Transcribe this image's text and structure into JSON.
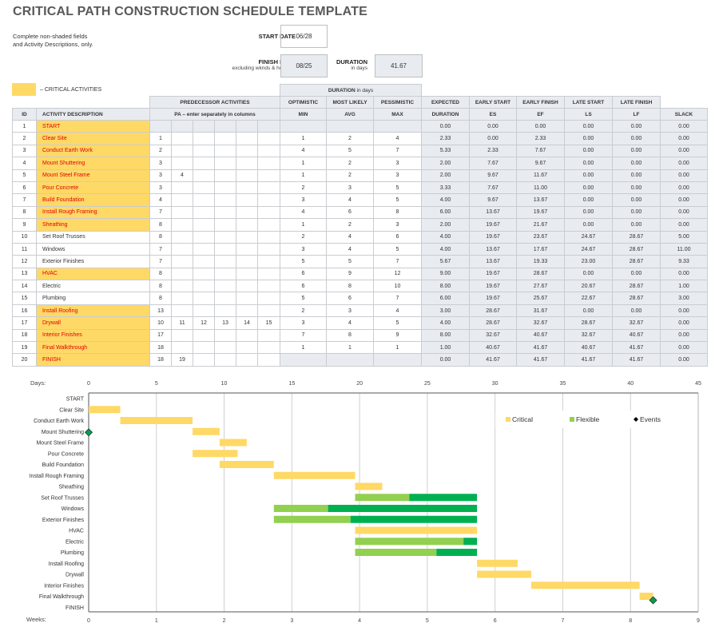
{
  "title": "CRITICAL PATH CONSTRUCTION SCHEDULE TEMPLATE",
  "note_line1": "Complete non-shaded fields",
  "note_line2": "and Activity Descriptions, only.",
  "start_date": {
    "label": "START DATE",
    "value": "06/28"
  },
  "finish_date": {
    "label": "FINISH DATE",
    "sublabel": "excluding wknds & holidays",
    "value": "08/25"
  },
  "duration": {
    "label": "DURATION",
    "sublabel": "in days",
    "value": "41.67"
  },
  "legend": {
    "critical_label": "– CRITICAL ACTIVITIES",
    "critical_color": "#FFD966"
  },
  "headers": {
    "duration_group": "DURATION",
    "duration_group_sub": "in days",
    "predecessor": "PREDECESSOR ACTIVITIES",
    "optimistic": "OPTIMISTIC",
    "most_likely": "MOST LIKELY",
    "pessimistic": "PESSIMISTIC",
    "expected": "EXPECTED",
    "early_start": "EARLY START",
    "early_finish": "EARLY FINISH",
    "late_start": "LATE START",
    "late_finish": "LATE FINISH",
    "id": "ID",
    "activity": "ACTIVITY DESCRIPTION",
    "pa": "PA  –  enter separately in columns",
    "min": "MIN",
    "avg": "AVG",
    "max": "MAX",
    "duration": "DURATION",
    "es": "ES",
    "ef": "EF",
    "ls": "LS",
    "lf": "LF",
    "slack": "SLACK"
  },
  "rows": [
    {
      "id": "1",
      "desc": "START",
      "critical": true,
      "pa": [
        "",
        "",
        "",
        "",
        "",
        ""
      ],
      "min": "",
      "avg": "",
      "max": "",
      "dur": "0.00",
      "es": "0.00",
      "ef": "0.00",
      "ls": "0.00",
      "lf": "0.00",
      "slack": "0.00"
    },
    {
      "id": "2",
      "desc": "Clear Site",
      "critical": true,
      "pa": [
        "1",
        "",
        "",
        "",
        "",
        ""
      ],
      "min": "1",
      "avg": "2",
      "max": "4",
      "dur": "2.33",
      "es": "0.00",
      "ef": "2.33",
      "ls": "0.00",
      "lf": "0.00",
      "slack": "0.00"
    },
    {
      "id": "3",
      "desc": "Conduct Earth Work",
      "critical": true,
      "pa": [
        "2",
        "",
        "",
        "",
        "",
        ""
      ],
      "min": "4",
      "avg": "5",
      "max": "7",
      "dur": "5.33",
      "es": "2.33",
      "ef": "7.67",
      "ls": "0.00",
      "lf": "0.00",
      "slack": "0.00"
    },
    {
      "id": "4",
      "desc": "Mount Shuttering",
      "critical": true,
      "pa": [
        "3",
        "",
        "",
        "",
        "",
        ""
      ],
      "min": "1",
      "avg": "2",
      "max": "3",
      "dur": "2.00",
      "es": "7.67",
      "ef": "9.67",
      "ls": "0.00",
      "lf": "0.00",
      "slack": "0.00"
    },
    {
      "id": "5",
      "desc": "Mount Steel Frame",
      "critical": true,
      "pa": [
        "3",
        "4",
        "",
        "",
        "",
        ""
      ],
      "min": "1",
      "avg": "2",
      "max": "3",
      "dur": "2.00",
      "es": "9.67",
      "ef": "11.67",
      "ls": "0.00",
      "lf": "0.00",
      "slack": "0.00"
    },
    {
      "id": "6",
      "desc": "Pour Concrete",
      "critical": true,
      "pa": [
        "3",
        "",
        "",
        "",
        "",
        ""
      ],
      "min": "2",
      "avg": "3",
      "max": "5",
      "dur": "3.33",
      "es": "7.67",
      "ef": "11.00",
      "ls": "0.00",
      "lf": "0.00",
      "slack": "0.00"
    },
    {
      "id": "7",
      "desc": "Build Foundation",
      "critical": true,
      "pa": [
        "4",
        "",
        "",
        "",
        "",
        ""
      ],
      "min": "3",
      "avg": "4",
      "max": "5",
      "dur": "4.00",
      "es": "9.67",
      "ef": "13.67",
      "ls": "0.00",
      "lf": "0.00",
      "slack": "0.00"
    },
    {
      "id": "8",
      "desc": "Install Rough Framing",
      "critical": true,
      "pa": [
        "7",
        "",
        "",
        "",
        "",
        ""
      ],
      "min": "4",
      "avg": "6",
      "max": "8",
      "dur": "6.00",
      "es": "13.67",
      "ef": "19.67",
      "ls": "0.00",
      "lf": "0.00",
      "slack": "0.00"
    },
    {
      "id": "9",
      "desc": "Sheathing",
      "critical": true,
      "pa": [
        "8",
        "",
        "",
        "",
        "",
        ""
      ],
      "min": "1",
      "avg": "2",
      "max": "3",
      "dur": "2.00",
      "es": "19.67",
      "ef": "21.67",
      "ls": "0.00",
      "lf": "0.00",
      "slack": "0.00"
    },
    {
      "id": "10",
      "desc": "Set Roof Trusses",
      "critical": false,
      "pa": [
        "8",
        "",
        "",
        "",
        "",
        ""
      ],
      "min": "2",
      "avg": "4",
      "max": "6",
      "dur": "4.00",
      "es": "19.67",
      "ef": "23.67",
      "ls": "24.67",
      "lf": "28.67",
      "slack": "5.00"
    },
    {
      "id": "11",
      "desc": "Windows",
      "critical": false,
      "pa": [
        "7",
        "",
        "",
        "",
        "",
        ""
      ],
      "min": "3",
      "avg": "4",
      "max": "5",
      "dur": "4.00",
      "es": "13.67",
      "ef": "17.67",
      "ls": "24.67",
      "lf": "28.67",
      "slack": "11.00"
    },
    {
      "id": "12",
      "desc": "Exterior Finishes",
      "critical": false,
      "pa": [
        "7",
        "",
        "",
        "",
        "",
        ""
      ],
      "min": "5",
      "avg": "5",
      "max": "7",
      "dur": "5.67",
      "es": "13.67",
      "ef": "19.33",
      "ls": "23.00",
      "lf": "28.67",
      "slack": "9.33"
    },
    {
      "id": "13",
      "desc": "HVAC",
      "critical": true,
      "pa": [
        "8",
        "",
        "",
        "",
        "",
        ""
      ],
      "min": "6",
      "avg": "9",
      "max": "12",
      "dur": "9.00",
      "es": "19.67",
      "ef": "28.67",
      "ls": "0.00",
      "lf": "0.00",
      "slack": "0.00"
    },
    {
      "id": "14",
      "desc": "Electric",
      "critical": false,
      "pa": [
        "8",
        "",
        "",
        "",
        "",
        ""
      ],
      "min": "6",
      "avg": "8",
      "max": "10",
      "dur": "8.00",
      "es": "19.67",
      "ef": "27.67",
      "ls": "20.67",
      "lf": "28.67",
      "slack": "1.00"
    },
    {
      "id": "15",
      "desc": "Plumbing",
      "critical": false,
      "pa": [
        "8",
        "",
        "",
        "",
        "",
        ""
      ],
      "min": "5",
      "avg": "6",
      "max": "7",
      "dur": "6.00",
      "es": "19.67",
      "ef": "25.67",
      "ls": "22.67",
      "lf": "28.67",
      "slack": "3.00"
    },
    {
      "id": "16",
      "desc": "Install Roofing",
      "critical": true,
      "pa": [
        "13",
        "",
        "",
        "",
        "",
        ""
      ],
      "min": "2",
      "avg": "3",
      "max": "4",
      "dur": "3.00",
      "es": "28.67",
      "ef": "31.67",
      "ls": "0.00",
      "lf": "0.00",
      "slack": "0.00"
    },
    {
      "id": "17",
      "desc": "Drywall",
      "critical": true,
      "pa": [
        "10",
        "11",
        "12",
        "13",
        "14",
        "15"
      ],
      "min": "3",
      "avg": "4",
      "max": "5",
      "dur": "4.00",
      "es": "28.67",
      "ef": "32.67",
      "ls": "28.67",
      "lf": "32.67",
      "slack": "0.00"
    },
    {
      "id": "18",
      "desc": "Interior Finishes",
      "critical": true,
      "pa": [
        "17",
        "",
        "",
        "",
        "",
        ""
      ],
      "min": "7",
      "avg": "8",
      "max": "9",
      "dur": "8.00",
      "es": "32.67",
      "ef": "40.67",
      "ls": "32.67",
      "lf": "40.67",
      "slack": "0.00"
    },
    {
      "id": "19",
      "desc": "Final Walkthrough",
      "critical": true,
      "pa": [
        "18",
        "",
        "",
        "",
        "",
        ""
      ],
      "min": "1",
      "avg": "1",
      "max": "1",
      "dur": "1.00",
      "es": "40.67",
      "ef": "41.67",
      "ls": "40.67",
      "lf": "41.67",
      "slack": "0.00"
    },
    {
      "id": "20",
      "desc": "FINISH",
      "critical": true,
      "pa": [
        "18",
        "19",
        "",
        "",
        "",
        ""
      ],
      "min": "",
      "avg": "",
      "max": "",
      "dur": "0.00",
      "es": "41.67",
      "ef": "41.67",
      "ls": "41.67",
      "lf": "41.67",
      "slack": "0.00"
    }
  ],
  "chart_data": {
    "type": "bar",
    "orientation": "horizontal-gantt",
    "days_label": "Days:",
    "weeks_label": "Weeks:",
    "days_ticks": [
      "0",
      "5",
      "10",
      "15",
      "20",
      "25",
      "30",
      "35",
      "40",
      "45"
    ],
    "weeks_ticks": [
      "0",
      "1",
      "2",
      "3",
      "4",
      "5",
      "6",
      "7",
      "8",
      "9"
    ],
    "xlim": [
      0,
      45
    ],
    "grid": true,
    "legend_position": "top-right",
    "legend": [
      {
        "name": "Critical",
        "color": "#FFD966"
      },
      {
        "name": "Flexible",
        "color": "#92D050"
      },
      {
        "name": "Events",
        "color": "#000000"
      }
    ],
    "slack_color": "#00B050",
    "event_color": "#00A050",
    "categories": [
      "START",
      "Clear Site",
      "Conduct Earth Work",
      "Mount Shuttering",
      "Mount Steel Frame",
      "Pour Concrete",
      "Build Foundation",
      "Install Rough Framing",
      "Sheathing",
      "Set Roof Trusses",
      "Windows",
      "Exterior Finishes",
      "HVAC",
      "Electric",
      "Plumbing",
      "Install Roofing",
      "Drywall",
      "Interior Finishes",
      "Final Walkthrough",
      "FINISH"
    ],
    "tasks": [
      {
        "start": 0,
        "end": 0,
        "slack_end": null,
        "critical": true
      },
      {
        "start": 0,
        "end": 2.33,
        "slack_end": null,
        "critical": true
      },
      {
        "start": 2.33,
        "end": 7.67,
        "slack_end": null,
        "critical": true
      },
      {
        "start": 7.67,
        "end": 9.67,
        "slack_end": null,
        "critical": true
      },
      {
        "start": 9.67,
        "end": 11.67,
        "slack_end": null,
        "critical": true
      },
      {
        "start": 7.67,
        "end": 11.0,
        "slack_end": null,
        "critical": true
      },
      {
        "start": 9.67,
        "end": 13.67,
        "slack_end": null,
        "critical": true
      },
      {
        "start": 13.67,
        "end": 19.67,
        "slack_end": null,
        "critical": true
      },
      {
        "start": 19.67,
        "end": 21.67,
        "slack_end": null,
        "critical": true
      },
      {
        "start": 19.67,
        "end": 23.67,
        "slack_end": 28.67,
        "critical": false
      },
      {
        "start": 13.67,
        "end": 17.67,
        "slack_end": 28.67,
        "critical": false
      },
      {
        "start": 13.67,
        "end": 19.33,
        "slack_end": 28.67,
        "critical": false
      },
      {
        "start": 19.67,
        "end": 28.67,
        "slack_end": null,
        "critical": true
      },
      {
        "start": 19.67,
        "end": 27.67,
        "slack_end": 28.67,
        "critical": false
      },
      {
        "start": 19.67,
        "end": 25.67,
        "slack_end": 28.67,
        "critical": false
      },
      {
        "start": 28.67,
        "end": 31.67,
        "slack_end": null,
        "critical": true
      },
      {
        "start": 28.67,
        "end": 32.67,
        "slack_end": null,
        "critical": true
      },
      {
        "start": 32.67,
        "end": 40.67,
        "slack_end": null,
        "critical": true
      },
      {
        "start": 40.67,
        "end": 41.67,
        "slack_end": null,
        "critical": true
      },
      {
        "start": 41.67,
        "end": 41.67,
        "slack_end": null,
        "critical": true
      }
    ],
    "events": [
      {
        "row": "Mount Shuttering",
        "day": 0
      },
      {
        "row": "Final Walkthrough",
        "day": 41.67
      }
    ]
  }
}
